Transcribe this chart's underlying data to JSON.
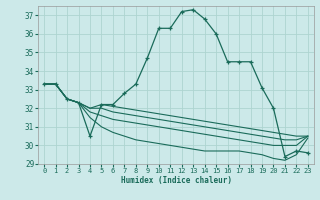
{
  "xlabel": "Humidex (Indice chaleur)",
  "bg_color": "#cce9e9",
  "line_color": "#1a6b5a",
  "grid_color": "#aed4d0",
  "xlim": [
    -0.5,
    23.5
  ],
  "ylim": [
    29,
    37.5
  ],
  "yticks": [
    29,
    30,
    31,
    32,
    33,
    34,
    35,
    36,
    37
  ],
  "xticks": [
    0,
    1,
    2,
    3,
    4,
    5,
    6,
    7,
    8,
    9,
    10,
    11,
    12,
    13,
    14,
    15,
    16,
    17,
    18,
    19,
    20,
    21,
    22,
    23
  ],
  "main_series": [
    33.3,
    33.3,
    32.5,
    32.3,
    30.5,
    32.2,
    32.2,
    32.8,
    33.3,
    34.7,
    36.3,
    36.3,
    37.2,
    37.3,
    36.8,
    36.0,
    34.5,
    34.5,
    34.5,
    33.1,
    32.0,
    29.4,
    29.7,
    29.6
  ],
  "line_top": [
    33.3,
    33.3,
    32.5,
    32.3,
    32.0,
    32.2,
    32.1,
    32.0,
    31.9,
    31.8,
    31.7,
    31.6,
    31.5,
    31.4,
    31.3,
    31.2,
    31.1,
    31.0,
    30.9,
    30.8,
    30.7,
    30.6,
    30.5,
    30.5
  ],
  "line_mid1": [
    33.3,
    33.3,
    32.5,
    32.3,
    32.0,
    32.0,
    31.8,
    31.7,
    31.6,
    31.5,
    31.4,
    31.3,
    31.2,
    31.1,
    31.0,
    30.9,
    30.8,
    30.7,
    30.6,
    30.5,
    30.4,
    30.3,
    30.3,
    30.5
  ],
  "line_mid2": [
    33.3,
    33.3,
    32.5,
    32.3,
    31.8,
    31.6,
    31.4,
    31.3,
    31.2,
    31.1,
    31.0,
    30.9,
    30.8,
    30.7,
    30.6,
    30.5,
    30.4,
    30.3,
    30.2,
    30.1,
    30.0,
    30.0,
    30.0,
    30.5
  ],
  "line_bot": [
    33.3,
    33.3,
    32.5,
    32.3,
    31.5,
    31.0,
    30.7,
    30.5,
    30.3,
    30.2,
    30.1,
    30.0,
    29.9,
    29.8,
    29.7,
    29.7,
    29.7,
    29.7,
    29.6,
    29.5,
    29.3,
    29.2,
    29.5,
    30.4
  ]
}
